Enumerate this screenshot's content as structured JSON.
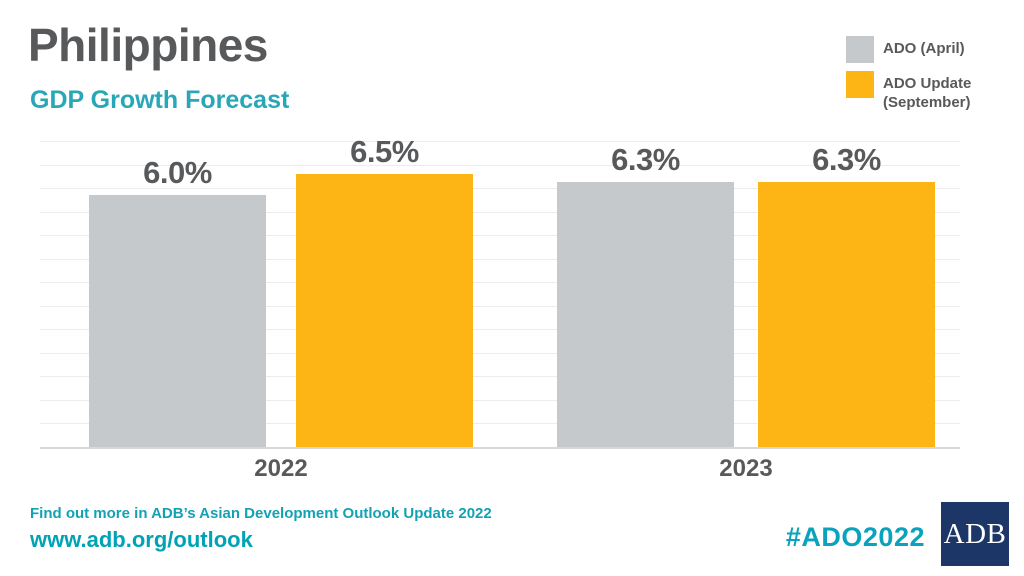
{
  "header": {
    "title": "Philippines",
    "subtitle": "GDP Growth Forecast"
  },
  "legend": {
    "items": [
      {
        "label": "ADO (April)",
        "color": "#c6c9cb"
      },
      {
        "label": "ADO Update (September)",
        "color": "#fdb515"
      }
    ]
  },
  "chart_data": {
    "type": "bar",
    "title": "Philippines",
    "subtitle": "GDP Growth Forecast",
    "categories": [
      "2022",
      "2023"
    ],
    "series": [
      {
        "name": "ADO (April)",
        "color": "#c6c9cb",
        "values": [
          6.0,
          6.3
        ],
        "labels": [
          "6.0%",
          "6.3%"
        ]
      },
      {
        "name": "ADO Update (September)",
        "color": "#fdb515",
        "values": [
          6.5,
          6.3
        ],
        "labels": [
          "6.5%",
          "6.3%"
        ]
      }
    ],
    "unit": "percent",
    "ylim": [
      0,
      7.3
    ],
    "grid": true,
    "legend_position": "top-right",
    "value_labels_shown": true
  },
  "footer": {
    "note": "Find out more in ADB’s Asian Development Outlook Update 2022",
    "url": "www.adb.org/outlook",
    "hashtag": "#ADO2022",
    "logo_text": "ADB"
  },
  "colors": {
    "title_text": "#58595b",
    "teal_accent": "#00a3b5",
    "bar_gray": "#c6c9cb",
    "bar_orange": "#fdb515",
    "logo_navy": "#1c3668",
    "gridline": "#ececec",
    "axis_line": "#d7d8d9",
    "background": "#ffffff"
  }
}
